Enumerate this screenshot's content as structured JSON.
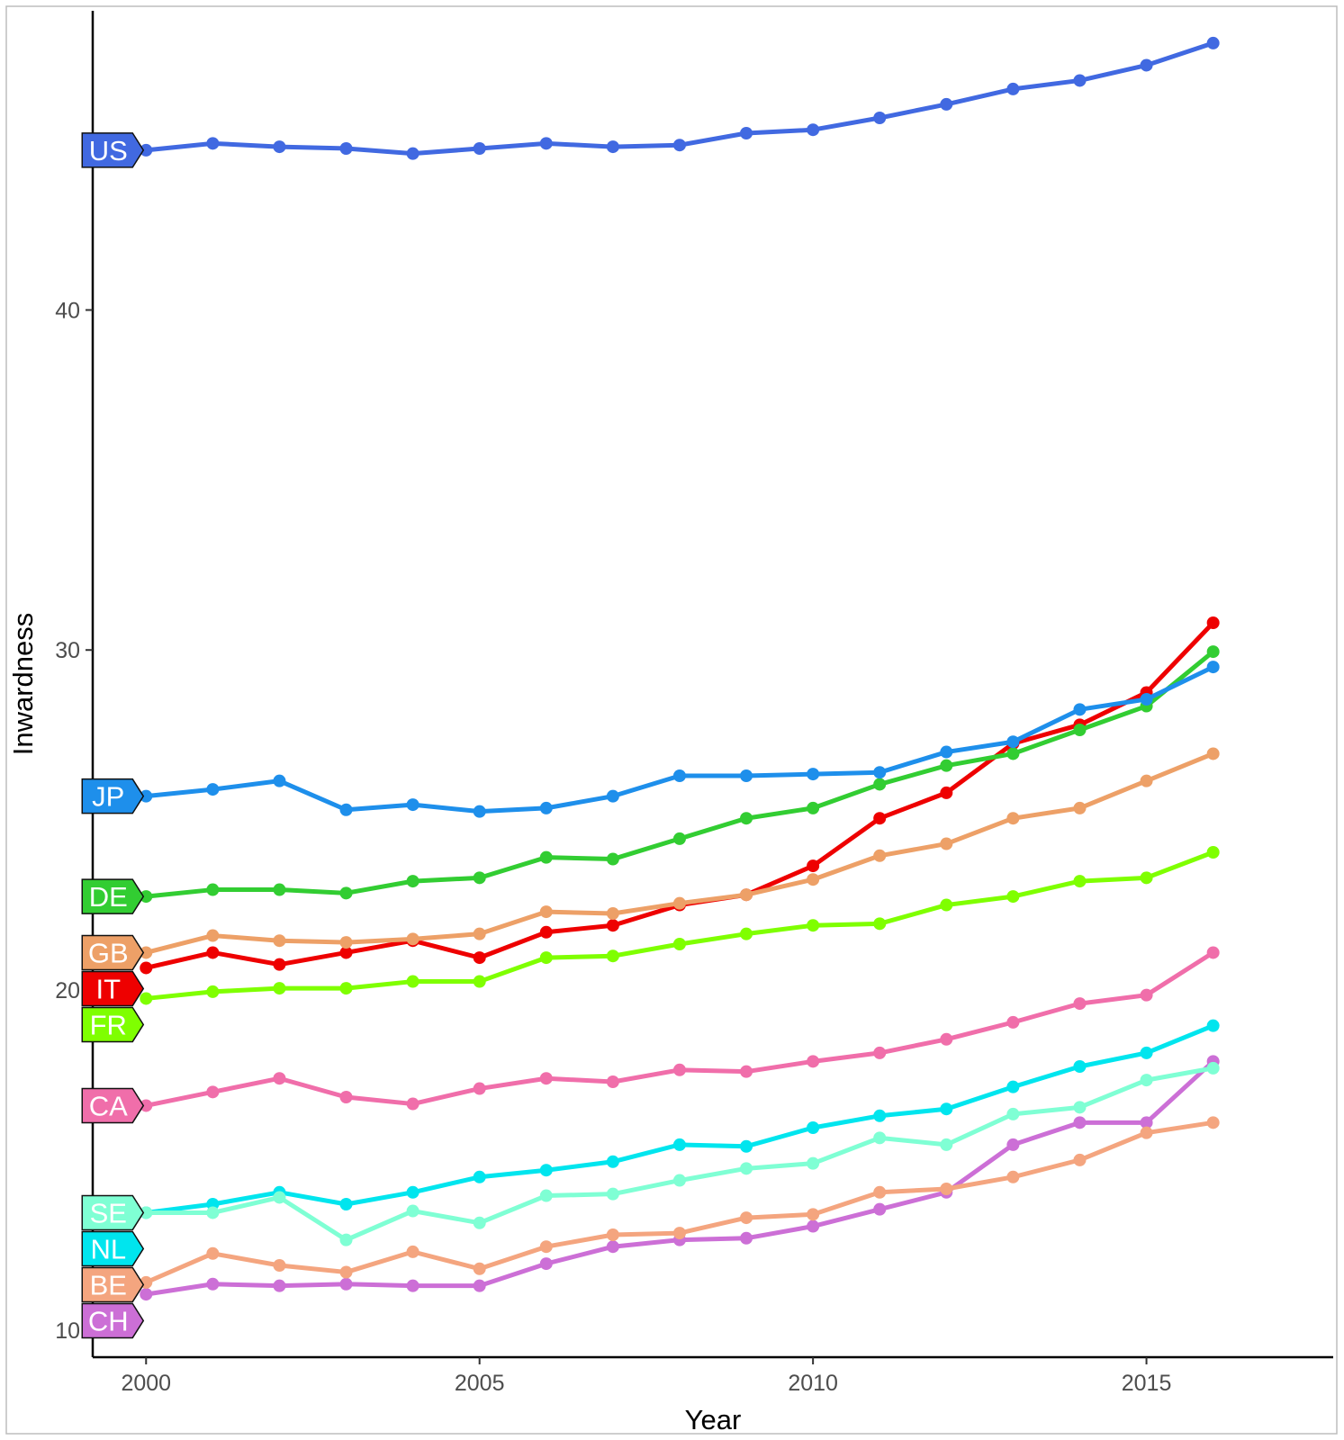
{
  "chart_data": {
    "type": "line",
    "xlabel": "Year",
    "ylabel": "Inwardness",
    "xlim": [
      1999.2,
      2017.8
    ],
    "ylim": [
      9.2,
      48.8
    ],
    "xticks": [
      2000,
      2005,
      2010,
      2015
    ],
    "yticks": [
      10,
      20,
      30,
      40
    ],
    "grid": false,
    "legend": "direct labels at left",
    "x": [
      2000,
      2001,
      2002,
      2003,
      2004,
      2005,
      2006,
      2007,
      2008,
      2009,
      2010,
      2011,
      2012,
      2013,
      2014,
      2015,
      2016
    ],
    "series": [
      {
        "name": "US",
        "color": "#4169E1",
        "values": [
          44.7,
          44.9,
          44.8,
          44.75,
          44.6,
          44.75,
          44.9,
          44.8,
          44.85,
          45.2,
          45.3,
          45.65,
          46.05,
          46.5,
          46.75,
          47.2,
          47.85
        ]
      },
      {
        "name": "JP",
        "color": "#1E8FEB",
        "values": [
          25.7,
          25.9,
          26.15,
          25.3,
          25.45,
          25.25,
          25.35,
          25.7,
          26.3,
          26.3,
          26.35,
          26.4,
          27.0,
          27.3,
          28.25,
          28.55,
          29.5
        ]
      },
      {
        "name": "DE",
        "color": "#32CD32",
        "values": [
          22.75,
          22.95,
          22.95,
          22.85,
          23.2,
          23.3,
          23.9,
          23.85,
          24.45,
          25.05,
          25.35,
          26.05,
          26.6,
          26.95,
          27.65,
          28.35,
          29.95
        ]
      },
      {
        "name": "GB",
        "color": "#EDA067",
        "values": [
          21.1,
          21.6,
          21.45,
          21.4,
          21.5,
          21.65,
          22.3,
          22.25,
          22.55,
          22.8,
          23.25,
          23.95,
          24.3,
          25.05,
          25.35,
          26.15,
          26.95
        ]
      },
      {
        "name": "IT",
        "color": "#EE0000",
        "values": [
          20.65,
          21.1,
          20.75,
          21.1,
          21.45,
          20.95,
          21.7,
          21.9,
          22.5,
          22.8,
          23.65,
          25.05,
          25.8,
          27.25,
          27.8,
          28.75,
          30.8
        ]
      },
      {
        "name": "FR",
        "color": "#7FFF00",
        "values": [
          19.75,
          19.95,
          20.05,
          20.05,
          20.25,
          20.25,
          20.95,
          21.0,
          21.35,
          21.65,
          21.9,
          21.95,
          22.5,
          22.75,
          23.2,
          23.3,
          24.05
        ]
      },
      {
        "name": "CA",
        "color": "#F06EAA",
        "values": [
          16.6,
          17.0,
          17.4,
          16.85,
          16.65,
          17.1,
          17.4,
          17.3,
          17.65,
          17.6,
          17.9,
          18.15,
          18.55,
          19.05,
          19.6,
          19.85,
          21.1
        ]
      },
      {
        "name": "SE",
        "color": "#7FFFD4",
        "values": [
          13.45,
          13.45,
          13.9,
          12.65,
          13.5,
          13.15,
          13.95,
          14.0,
          14.4,
          14.75,
          14.9,
          15.65,
          15.45,
          16.35,
          16.55,
          17.35,
          17.7
        ]
      },
      {
        "name": "NL",
        "color": "#00E5EE",
        "values": [
          13.45,
          13.7,
          14.05,
          13.7,
          14.05,
          14.5,
          14.7,
          14.95,
          15.45,
          15.4,
          15.95,
          16.3,
          16.5,
          17.15,
          17.75,
          18.15,
          18.95
        ]
      },
      {
        "name": "BE",
        "color": "#F4A57F",
        "values": [
          11.4,
          12.25,
          11.9,
          11.7,
          12.3,
          11.8,
          12.45,
          12.8,
          12.85,
          13.3,
          13.4,
          14.05,
          14.15,
          14.5,
          15.0,
          15.8,
          16.1
        ]
      },
      {
        "name": "CH",
        "color": "#CC6FD6",
        "values": [
          11.05,
          11.35,
          11.3,
          11.35,
          11.3,
          11.3,
          11.95,
          12.45,
          12.65,
          12.7,
          13.05,
          13.55,
          14.05,
          15.45,
          16.1,
          16.1,
          17.9
        ]
      }
    ]
  }
}
